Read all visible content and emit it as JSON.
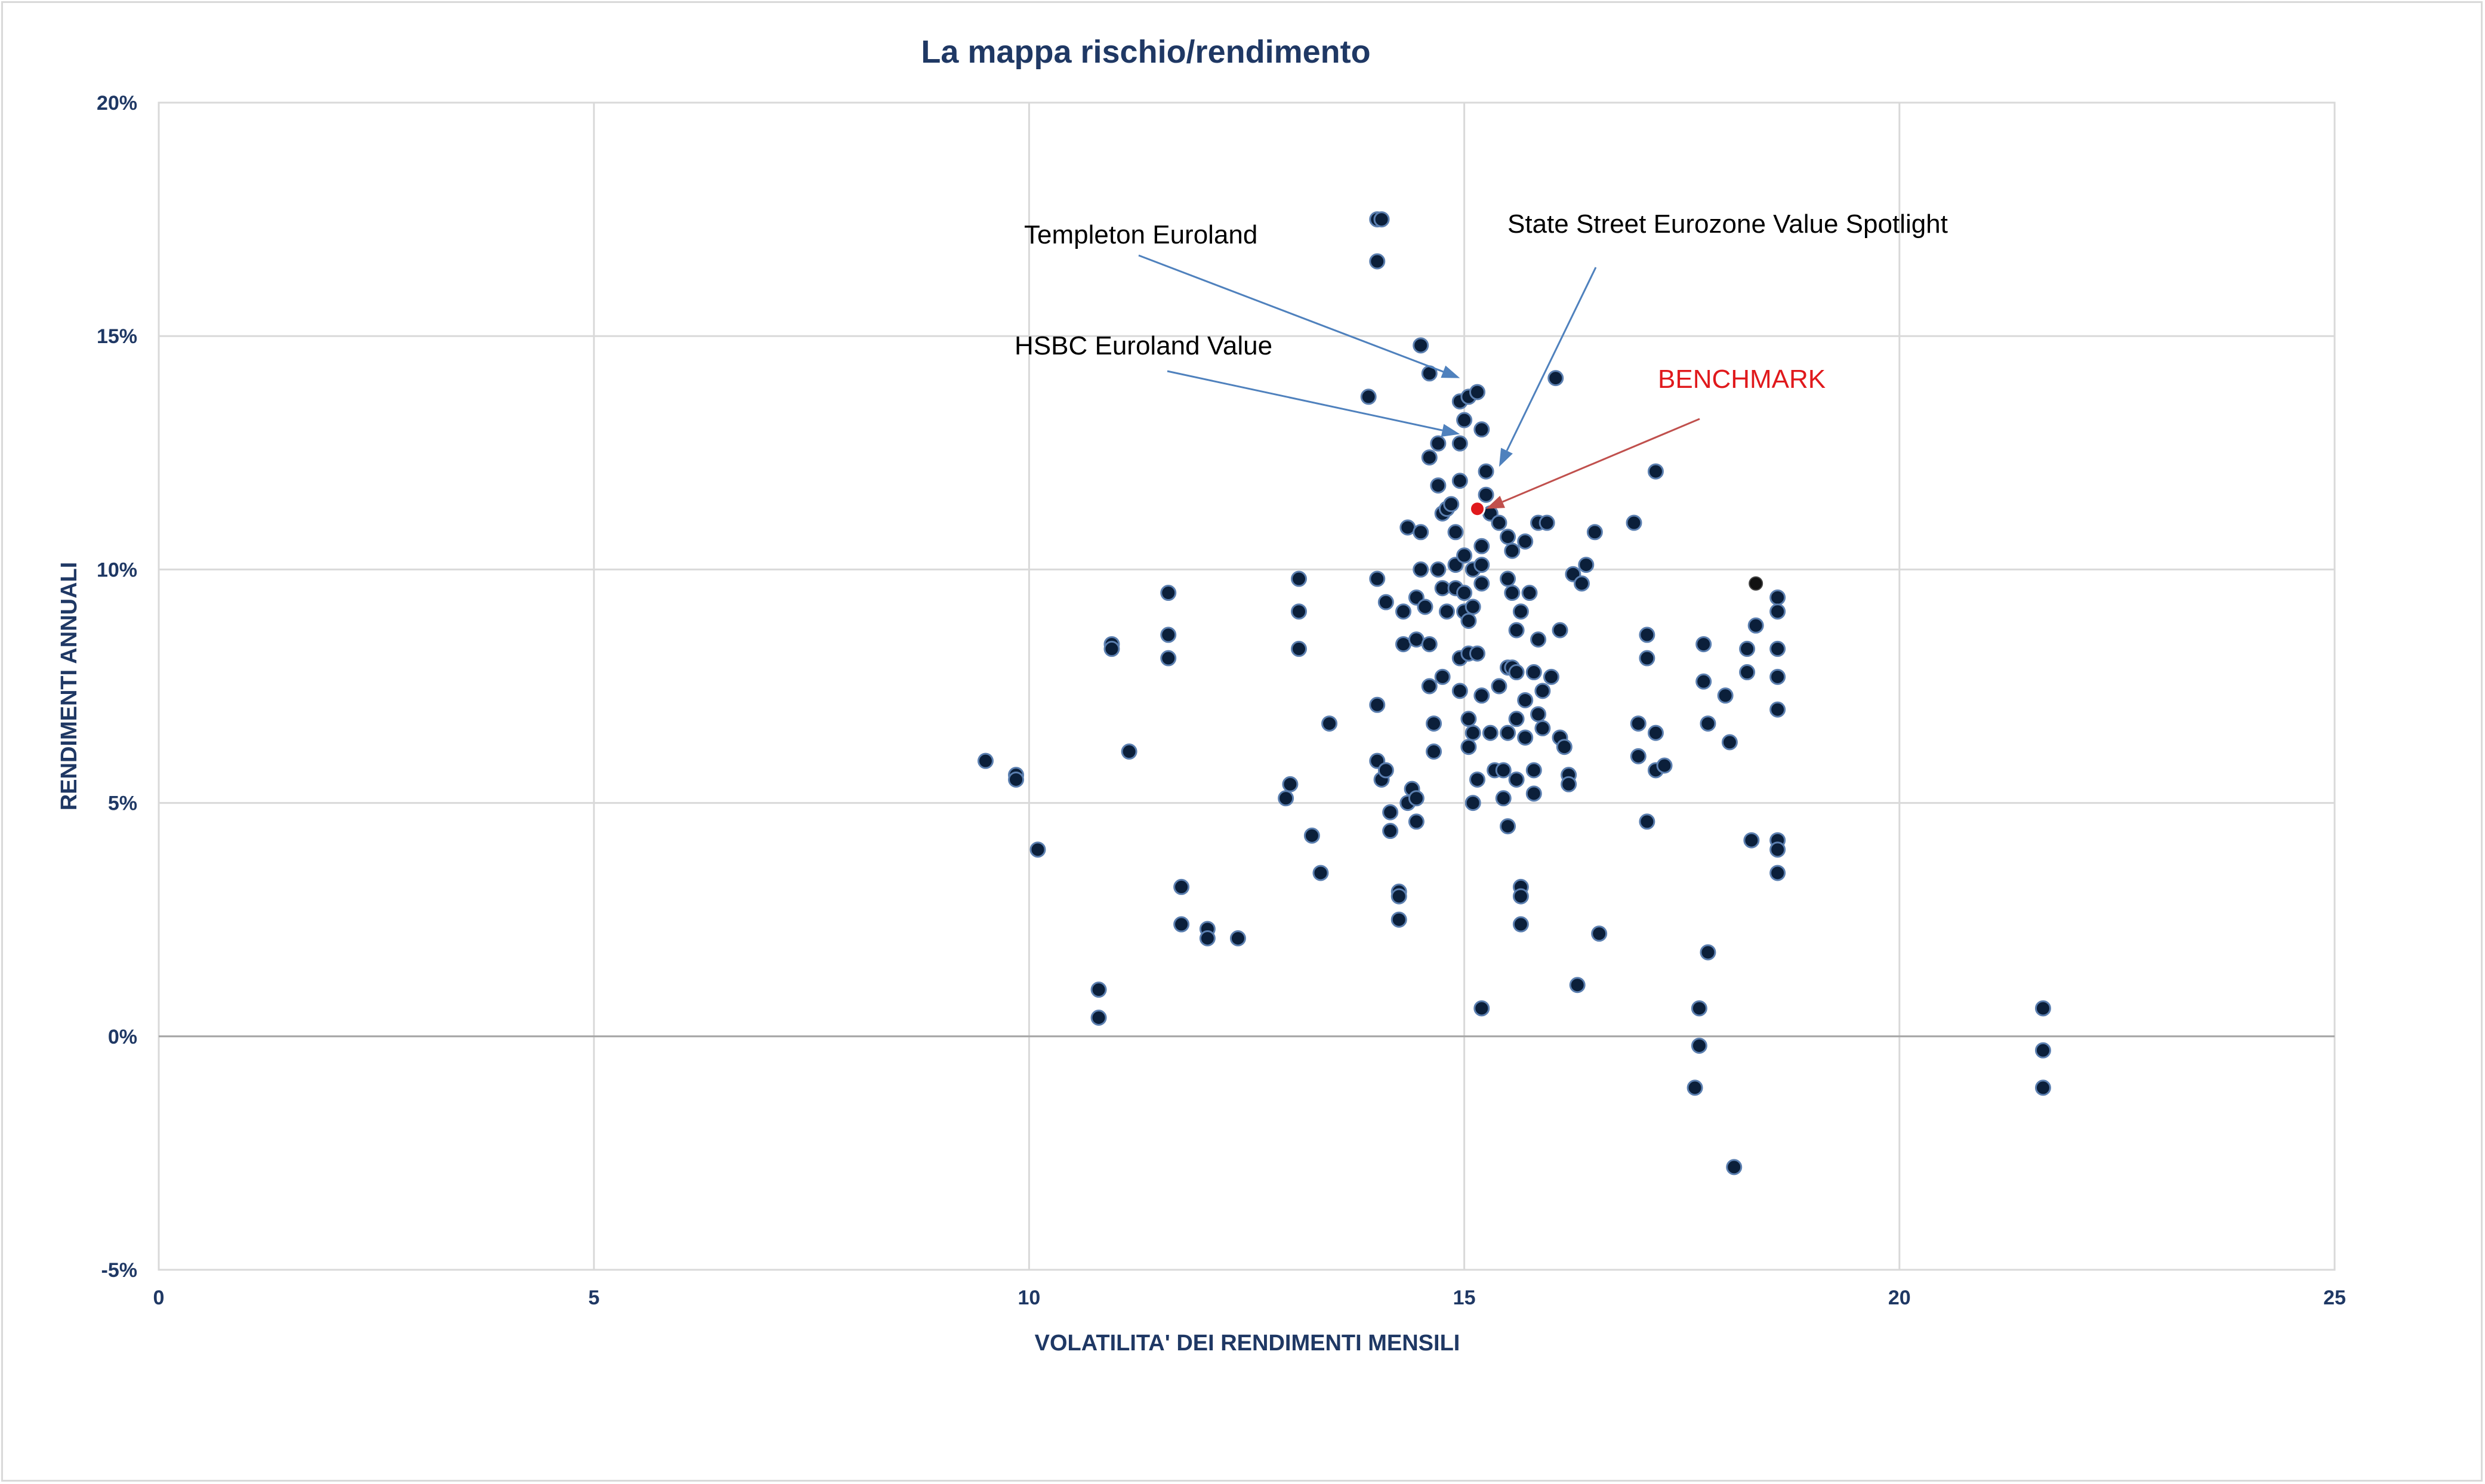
{
  "chart_data": {
    "type": "scatter",
    "title": "La mappa rischio/rendimento",
    "xlabel": "VOLATILITA' DEI RENDIMENTI MENSILI",
    "ylabel": "RENDIMENTI ANNUALI",
    "xlim": [
      0,
      25
    ],
    "ylim": [
      -0.05,
      0.2
    ],
    "x_ticks": [
      0,
      5,
      10,
      15,
      20,
      25
    ],
    "x_tick_labels": [
      "0",
      "5",
      "10",
      "15",
      "20",
      "25"
    ],
    "y_ticks": [
      -0.05,
      0,
      0.05,
      0.1,
      0.15,
      0.2
    ],
    "y_tick_labels": [
      "-5%",
      "0%",
      "5%",
      "10%",
      "15%",
      "20%"
    ],
    "grid": true,
    "colors": {
      "points": "#0b1f3a",
      "point_stroke": "#5b7fb0",
      "benchmark": "#e0191c",
      "annotation_arrow": "#4f81bd",
      "benchmark_arrow": "#c0504d",
      "grid": "#d9d9d9",
      "text": "#1f3864"
    },
    "annotations": [
      {
        "text": "Templeton Euroland",
        "color": "#000000",
        "target": [
          14.95,
          0.141
        ]
      },
      {
        "text": "State Street Eurozone Value Spotlight",
        "color": "#000000",
        "target": [
          15.4,
          0.122
        ]
      },
      {
        "text": "HSBC Euroland Value",
        "color": "#000000",
        "target": [
          14.95,
          0.129
        ]
      },
      {
        "text": "BENCHMARK",
        "color": "#e0191c",
        "target": [
          15.25,
          0.113
        ]
      }
    ],
    "benchmark": {
      "name": "BENCHMARK",
      "x": 15.15,
      "y": 0.113
    },
    "series": [
      {
        "points": [
          [
            9.5,
            0.059
          ],
          [
            9.85,
            0.056
          ],
          [
            9.85,
            0.055
          ],
          [
            10.1,
            0.04
          ],
          [
            10.8,
            0.01
          ],
          [
            10.8,
            0.004
          ],
          [
            10.95,
            0.084
          ],
          [
            10.95,
            0.083
          ],
          [
            11.15,
            0.061
          ],
          [
            11.6,
            0.095
          ],
          [
            11.6,
            0.086
          ],
          [
            11.6,
            0.081
          ],
          [
            11.75,
            0.032
          ],
          [
            11.75,
            0.024
          ],
          [
            12.05,
            0.023
          ],
          [
            12.05,
            0.021
          ],
          [
            12.4,
            0.021
          ],
          [
            12.95,
            0.051
          ],
          [
            13.0,
            0.054
          ],
          [
            13.1,
            0.098
          ],
          [
            13.1,
            0.091
          ],
          [
            13.1,
            0.083
          ],
          [
            13.25,
            0.043
          ],
          [
            13.35,
            0.035
          ],
          [
            13.45,
            0.067
          ],
          [
            13.9,
            0.137
          ],
          [
            14.0,
            0.175
          ],
          [
            14.05,
            0.175
          ],
          [
            14.0,
            0.166
          ],
          [
            14.0,
            0.098
          ],
          [
            14.1,
            0.093
          ],
          [
            14.0,
            0.071
          ],
          [
            14.0,
            0.059
          ],
          [
            14.05,
            0.055
          ],
          [
            14.1,
            0.057
          ],
          [
            14.15,
            0.048
          ],
          [
            14.15,
            0.044
          ],
          [
            14.25,
            0.031
          ],
          [
            14.25,
            0.03
          ],
          [
            14.25,
            0.025
          ],
          [
            14.3,
            0.091
          ],
          [
            14.3,
            0.084
          ],
          [
            14.35,
            0.109
          ],
          [
            14.35,
            0.05
          ],
          [
            14.4,
            0.053
          ],
          [
            14.45,
            0.051
          ],
          [
            14.45,
            0.046
          ],
          [
            14.45,
            0.085
          ],
          [
            14.45,
            0.094
          ],
          [
            14.5,
            0.148
          ],
          [
            14.5,
            0.108
          ],
          [
            14.5,
            0.1
          ],
          [
            14.55,
            0.092
          ],
          [
            14.6,
            0.142
          ],
          [
            14.6,
            0.124
          ],
          [
            14.6,
            0.084
          ],
          [
            14.6,
            0.075
          ],
          [
            14.65,
            0.067
          ],
          [
            14.65,
            0.061
          ],
          [
            14.7,
            0.127
          ],
          [
            14.7,
            0.118
          ],
          [
            14.7,
            0.1
          ],
          [
            14.75,
            0.112
          ],
          [
            14.75,
            0.096
          ],
          [
            14.75,
            0.077
          ],
          [
            14.8,
            0.091
          ],
          [
            14.8,
            0.113
          ],
          [
            14.85,
            0.114
          ],
          [
            14.9,
            0.108
          ],
          [
            14.9,
            0.101
          ],
          [
            14.9,
            0.096
          ],
          [
            14.95,
            0.136
          ],
          [
            14.95,
            0.127
          ],
          [
            14.95,
            0.119
          ],
          [
            14.95,
            0.081
          ],
          [
            14.95,
            0.074
          ],
          [
            15.0,
            0.132
          ],
          [
            15.0,
            0.103
          ],
          [
            15.0,
            0.095
          ],
          [
            15.0,
            0.091
          ],
          [
            15.05,
            0.137
          ],
          [
            15.05,
            0.089
          ],
          [
            15.05,
            0.082
          ],
          [
            15.05,
            0.068
          ],
          [
            15.05,
            0.062
          ],
          [
            15.1,
            0.1
          ],
          [
            15.1,
            0.092
          ],
          [
            15.1,
            0.065
          ],
          [
            15.1,
            0.05
          ],
          [
            15.15,
            0.138
          ],
          [
            15.15,
            0.082
          ],
          [
            15.15,
            0.055
          ],
          [
            15.2,
            0.13
          ],
          [
            15.2,
            0.105
          ],
          [
            15.2,
            0.097
          ],
          [
            15.2,
            0.101
          ],
          [
            15.2,
            0.073
          ],
          [
            15.2,
            0.006
          ],
          [
            15.25,
            0.121
          ],
          [
            15.25,
            0.116
          ],
          [
            15.3,
            0.112
          ],
          [
            15.3,
            0.065
          ],
          [
            15.35,
            0.057
          ],
          [
            15.4,
            0.11
          ],
          [
            15.4,
            0.075
          ],
          [
            15.45,
            0.057
          ],
          [
            15.45,
            0.051
          ],
          [
            15.5,
            0.107
          ],
          [
            15.5,
            0.098
          ],
          [
            15.5,
            0.079
          ],
          [
            15.5,
            0.065
          ],
          [
            15.5,
            0.045
          ],
          [
            15.55,
            0.104
          ],
          [
            15.55,
            0.095
          ],
          [
            15.55,
            0.079
          ],
          [
            15.6,
            0.087
          ],
          [
            15.6,
            0.078
          ],
          [
            15.6,
            0.068
          ],
          [
            15.6,
            0.055
          ],
          [
            15.65,
            0.091
          ],
          [
            15.65,
            0.032
          ],
          [
            15.65,
            0.03
          ],
          [
            15.65,
            0.024
          ],
          [
            15.7,
            0.106
          ],
          [
            15.7,
            0.072
          ],
          [
            15.7,
            0.064
          ],
          [
            15.75,
            0.095
          ],
          [
            15.8,
            0.078
          ],
          [
            15.8,
            0.057
          ],
          [
            15.8,
            0.052
          ],
          [
            15.85,
            0.11
          ],
          [
            15.85,
            0.085
          ],
          [
            15.85,
            0.069
          ],
          [
            15.9,
            0.074
          ],
          [
            15.9,
            0.066
          ],
          [
            15.95,
            0.11
          ],
          [
            16.0,
            0.077
          ],
          [
            16.05,
            0.141
          ],
          [
            16.1,
            0.087
          ],
          [
            16.1,
            0.064
          ],
          [
            16.15,
            0.062
          ],
          [
            16.2,
            0.056
          ],
          [
            16.2,
            0.054
          ],
          [
            16.25,
            0.099
          ],
          [
            16.3,
            0.011
          ],
          [
            16.35,
            0.097
          ],
          [
            16.4,
            0.101
          ],
          [
            16.5,
            0.108
          ],
          [
            16.55,
            0.022
          ],
          [
            16.95,
            0.11
          ],
          [
            17.0,
            0.067
          ],
          [
            17.0,
            0.06
          ],
          [
            17.1,
            0.086
          ],
          [
            17.1,
            0.081
          ],
          [
            17.1,
            0.046
          ],
          [
            17.2,
            0.121
          ],
          [
            17.2,
            0.065
          ],
          [
            17.2,
            0.057
          ],
          [
            17.3,
            0.058
          ],
          [
            17.7,
            0.006
          ],
          [
            17.7,
            -0.002
          ],
          [
            17.65,
            -0.011
          ],
          [
            17.75,
            0.084
          ],
          [
            17.75,
            0.076
          ],
          [
            17.8,
            0.067
          ],
          [
            17.8,
            0.018
          ],
          [
            18.0,
            0.073
          ],
          [
            18.05,
            0.063
          ],
          [
            18.1,
            -0.028
          ],
          [
            18.25,
            0.078
          ],
          [
            18.25,
            0.083
          ],
          [
            18.3,
            0.042
          ],
          [
            18.35,
            0.088
          ],
          [
            18.6,
            0.094
          ],
          [
            18.6,
            0.091
          ],
          [
            18.6,
            0.083
          ],
          [
            18.6,
            0.077
          ],
          [
            18.6,
            0.07
          ],
          [
            18.6,
            0.042
          ],
          [
            18.6,
            0.04
          ],
          [
            18.6,
            0.035
          ],
          [
            21.65,
            0.006
          ],
          [
            21.65,
            -0.003
          ],
          [
            21.65,
            -0.011
          ]
        ]
      },
      {
        "points": [
          [
            18.35,
            0.097
          ]
        ]
      }
    ]
  }
}
